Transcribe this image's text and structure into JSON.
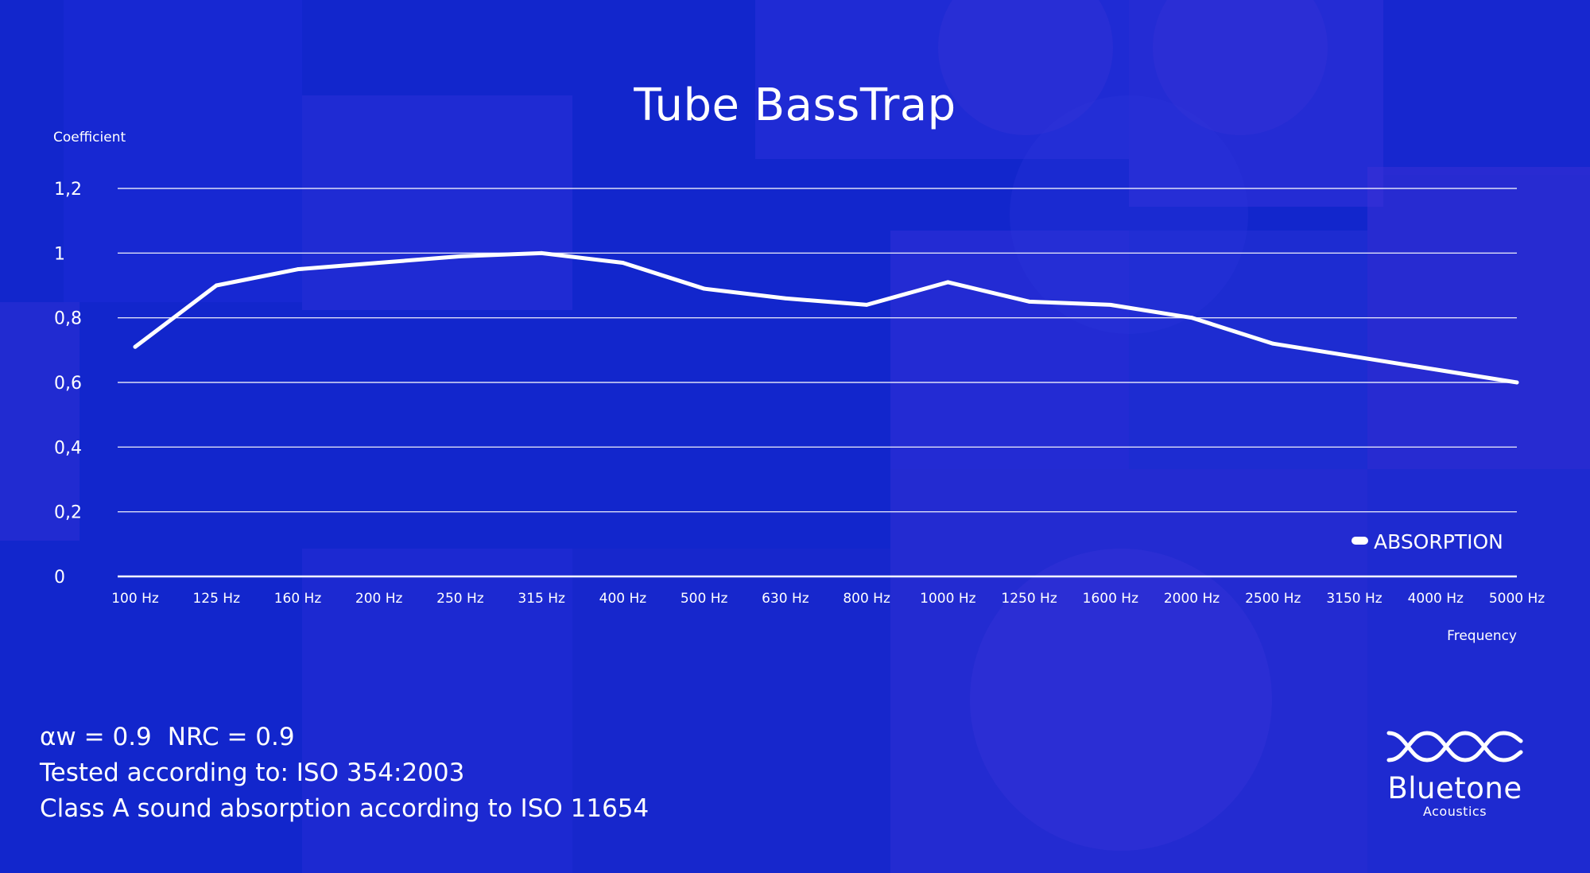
{
  "title": "Tube BassTrap",
  "colors": {
    "background": "#1226cc",
    "line": "#ffffff"
  },
  "chart_data": {
    "type": "line",
    "title": "Tube BassTrap",
    "ylabel": "Coefficient",
    "xlabel": "Frequency",
    "ylim": [
      0,
      1.2
    ],
    "yticks": [
      0,
      0.2,
      0.4,
      0.6,
      0.8,
      1,
      1.2
    ],
    "ytick_labels": [
      "0",
      "0,2",
      "0,4",
      "0,6",
      "0,8",
      "1",
      "1,2"
    ],
    "grid": true,
    "legend": "bottom-right",
    "categories": [
      "100 Hz",
      "125 Hz",
      "160 Hz",
      "200 Hz",
      "250 Hz",
      "315 Hz",
      "400 Hz",
      "500 Hz",
      "630 Hz",
      "800 Hz",
      "1000 Hz",
      "1250 Hz",
      "1600 Hz",
      "2000 Hz",
      "2500 Hz",
      "3150 Hz",
      "4000 Hz",
      "5000 Hz"
    ],
    "series": [
      {
        "name": "ABSORPTION",
        "values": [
          0.71,
          0.9,
          0.95,
          0.97,
          0.99,
          1.0,
          0.97,
          0.89,
          0.86,
          0.84,
          0.91,
          0.85,
          0.84,
          0.8,
          0.72,
          0.68,
          0.64,
          0.6
        ]
      }
    ]
  },
  "info": {
    "line1_a": "αw = 0.9",
    "line1_b": "NRC = 0.9",
    "line2": "Tested according to: ISO 354:2003",
    "line3": "Class A sound absorption according to ISO 11654"
  },
  "logo": {
    "name": "Bluetone",
    "sub": "Acoustics"
  }
}
